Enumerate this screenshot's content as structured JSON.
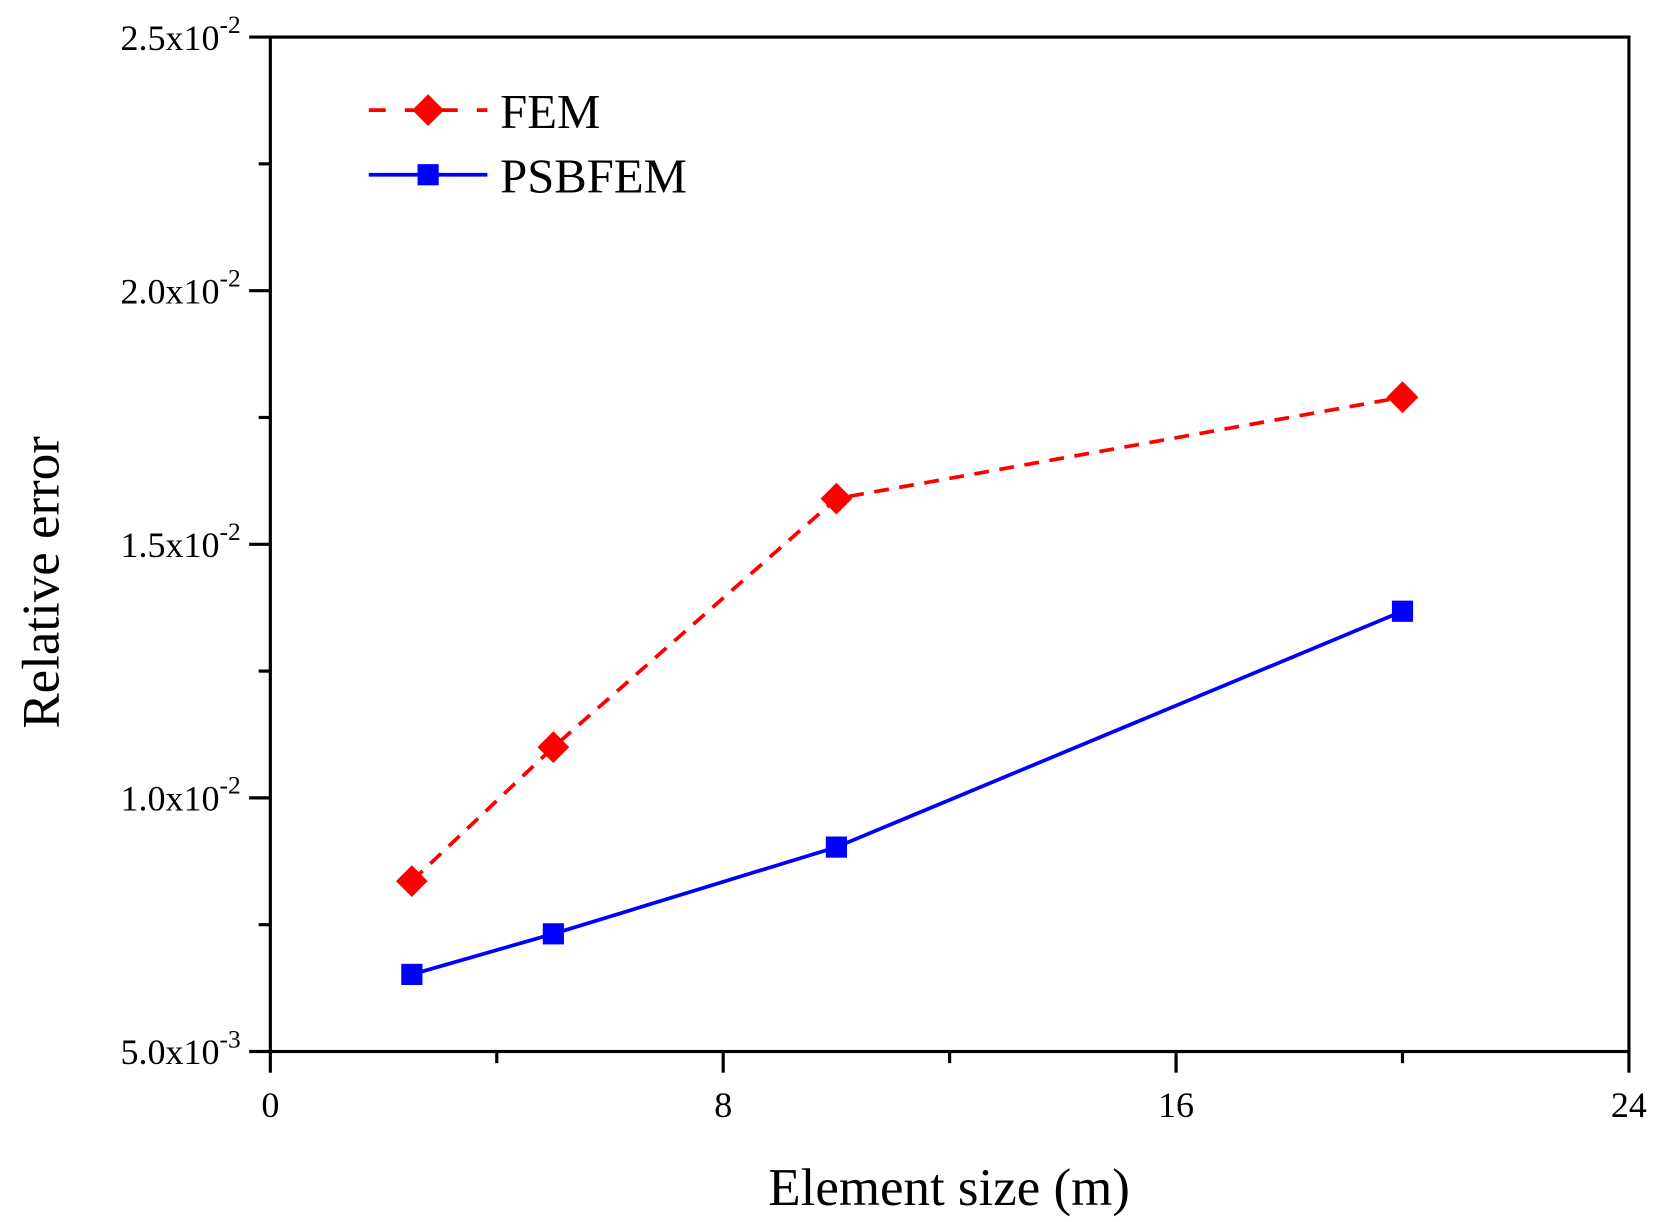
{
  "chart_data": {
    "type": "line",
    "title": "",
    "xlabel": "Element size (m)",
    "ylabel": "Relative error",
    "xlim": [
      0,
      24
    ],
    "ylim": [
      0.005,
      0.025
    ],
    "xticks": [
      0,
      8,
      16,
      24
    ],
    "xtick_labels": [
      "0",
      "8",
      "16",
      "24"
    ],
    "xminor": [
      4,
      12,
      20
    ],
    "yticks": [
      0.005,
      0.01,
      0.015,
      0.02,
      0.025
    ],
    "ytick_labels": [
      {
        "mant": "5.0x10",
        "exp": "-3"
      },
      {
        "mant": "1.0x10",
        "exp": "-2"
      },
      {
        "mant": "1.5x10",
        "exp": "-2"
      },
      {
        "mant": "2.0x10",
        "exp": "-2"
      },
      {
        "mant": "2.5x10",
        "exp": "-2"
      }
    ],
    "yminor": [
      0.0075,
      0.0125,
      0.0175,
      0.0225
    ],
    "grid": false,
    "legend_position": "top-left",
    "x": [
      2.5,
      5,
      10,
      20
    ],
    "series": [
      {
        "name": "FEM",
        "values": [
          0.00836,
          0.011,
          0.0159,
          0.0179
        ],
        "color": "#ff0000",
        "dash": "dashed",
        "marker": "diamond"
      },
      {
        "name": "PSBFEM",
        "values": [
          0.00652,
          0.00732,
          0.00903,
          0.01368
        ],
        "color": "#0000ff",
        "dash": "solid",
        "marker": "square"
      }
    ]
  }
}
